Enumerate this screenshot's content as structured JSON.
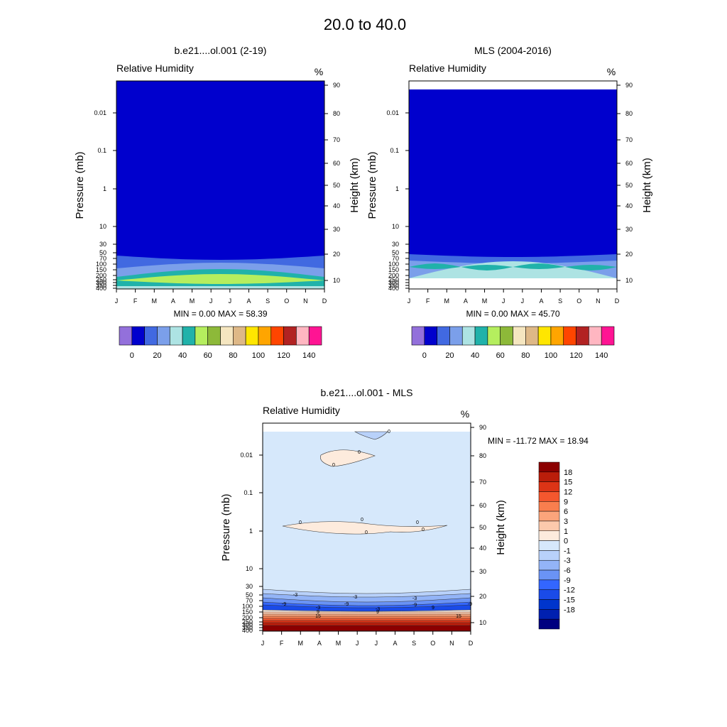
{
  "page_title": "20.0 to  40.0",
  "colors": {
    "abs_levels": [
      "#9370DB",
      "#0000CD",
      "#4169E1",
      "#7B9FEA",
      "#ADE3E3",
      "#20B2AA",
      "#B5EE5E",
      "#8DB939",
      "#F5E6C0",
      "#DEB887",
      "#FFE600",
      "#FFA500",
      "#FF4500",
      "#B22222",
      "#FFB6C1",
      "#FF1493"
    ],
    "diff_levels": [
      "#000080",
      "#0020B0",
      "#0035CC",
      "#1A4BE8",
      "#3366FF",
      "#6A93F5",
      "#93B4F7",
      "#B8D1FA",
      "#D6E8FB",
      "#FDEBDD",
      "#FCC9AC",
      "#FBA47B",
      "#F97E4E",
      "#F4572E",
      "#DC3416",
      "#BA1D0A",
      "#8B0000"
    ]
  },
  "panels": [
    {
      "title": "b.e21....ol.001 (2-19)",
      "variable": "Relative Humidity",
      "units": "%",
      "stats": "MIN =   0.00  MAX =  58.39"
    },
    {
      "title": "MLS (2004-2016)",
      "variable": "Relative Humidity",
      "units": "%",
      "stats": "MIN =   0.00  MAX =  45.70"
    },
    {
      "title": "b.e21....ol.001 - MLS",
      "variable": "Relative Humidity",
      "units": "%",
      "stats": "MIN = -11.72  MAX =  18.94"
    }
  ],
  "abs_colorbar_labels": [
    "0",
    "20",
    "40",
    "60",
    "80",
    "100",
    "120",
    "140"
  ],
  "diff_colorbar_labels": [
    "18",
    "15",
    "12",
    "9",
    "6",
    "3",
    "1",
    "0",
    "-1",
    "-3",
    "-6",
    "-9",
    "-12",
    "-15",
    "-18"
  ],
  "chart_data": [
    {
      "type": "heatmap",
      "title": "b.e21....ol.001 (2-19)",
      "subtitle": "Relative Humidity",
      "units": "%",
      "xlabel": "",
      "ylabel": "Pressure (mb)",
      "ylabel_right": "Height (km)",
      "x_ticks": [
        "J",
        "F",
        "M",
        "A",
        "M",
        "J",
        "J",
        "A",
        "S",
        "O",
        "N",
        "D"
      ],
      "y_ticks_pressure": [
        "0.01",
        "0.1",
        "1",
        "10",
        "30",
        "50",
        "70",
        "100",
        "150",
        "200",
        "250",
        "300",
        "350",
        "400"
      ],
      "y_ticks_height": [
        "90",
        "80",
        "70",
        "60",
        "50",
        "40",
        "30",
        "20",
        "10"
      ],
      "contour_levels": [
        0,
        10,
        20,
        30,
        40,
        50,
        60,
        70,
        80,
        90,
        100,
        110,
        120,
        130,
        140
      ],
      "min": 0.0,
      "max": 58.39
    },
    {
      "type": "heatmap",
      "title": "MLS (2004-2016)",
      "subtitle": "Relative Humidity",
      "units": "%",
      "xlabel": "",
      "ylabel": "Pressure (mb)",
      "ylabel_right": "Height (km)",
      "x_ticks": [
        "J",
        "F",
        "M",
        "A",
        "M",
        "J",
        "J",
        "A",
        "S",
        "O",
        "N",
        "D"
      ],
      "y_ticks_pressure": [
        "0.01",
        "0.1",
        "1",
        "10",
        "30",
        "50",
        "70",
        "100",
        "150",
        "200",
        "250",
        "300",
        "350",
        "400"
      ],
      "y_ticks_height": [
        "90",
        "80",
        "70",
        "60",
        "50",
        "40",
        "30",
        "20",
        "10"
      ],
      "contour_levels": [
        0,
        10,
        20,
        30,
        40,
        50,
        60,
        70,
        80,
        90,
        100,
        110,
        120,
        130,
        140
      ],
      "min": 0.0,
      "max": 45.7
    },
    {
      "type": "heatmap",
      "title": "b.e21....ol.001 - MLS",
      "subtitle": "Relative Humidity",
      "units": "%",
      "xlabel": "",
      "ylabel": "Pressure (mb)",
      "ylabel_right": "Height (km)",
      "x_ticks": [
        "J",
        "F",
        "M",
        "A",
        "M",
        "J",
        "J",
        "A",
        "S",
        "O",
        "N",
        "D"
      ],
      "y_ticks_pressure": [
        "0.01",
        "0.1",
        "1",
        "10",
        "30",
        "50",
        "70",
        "100",
        "150",
        "200",
        "250",
        "300",
        "350",
        "400"
      ],
      "y_ticks_height": [
        "90",
        "80",
        "70",
        "60",
        "50",
        "40",
        "30",
        "20",
        "10"
      ],
      "contour_levels": [
        -18,
        -15,
        -12,
        -9,
        -6,
        -3,
        -1,
        0,
        1,
        3,
        6,
        9,
        12,
        15,
        18
      ],
      "contour_labels": [
        "0",
        "0",
        "0",
        "0",
        "0",
        "0",
        "0",
        "0",
        "-3",
        "-3",
        "-3",
        "-9",
        "-9",
        "-9",
        "-9",
        "-3",
        "-3",
        "9",
        "9",
        "9",
        "15",
        "15"
      ],
      "min": -11.72,
      "max": 18.94
    }
  ]
}
